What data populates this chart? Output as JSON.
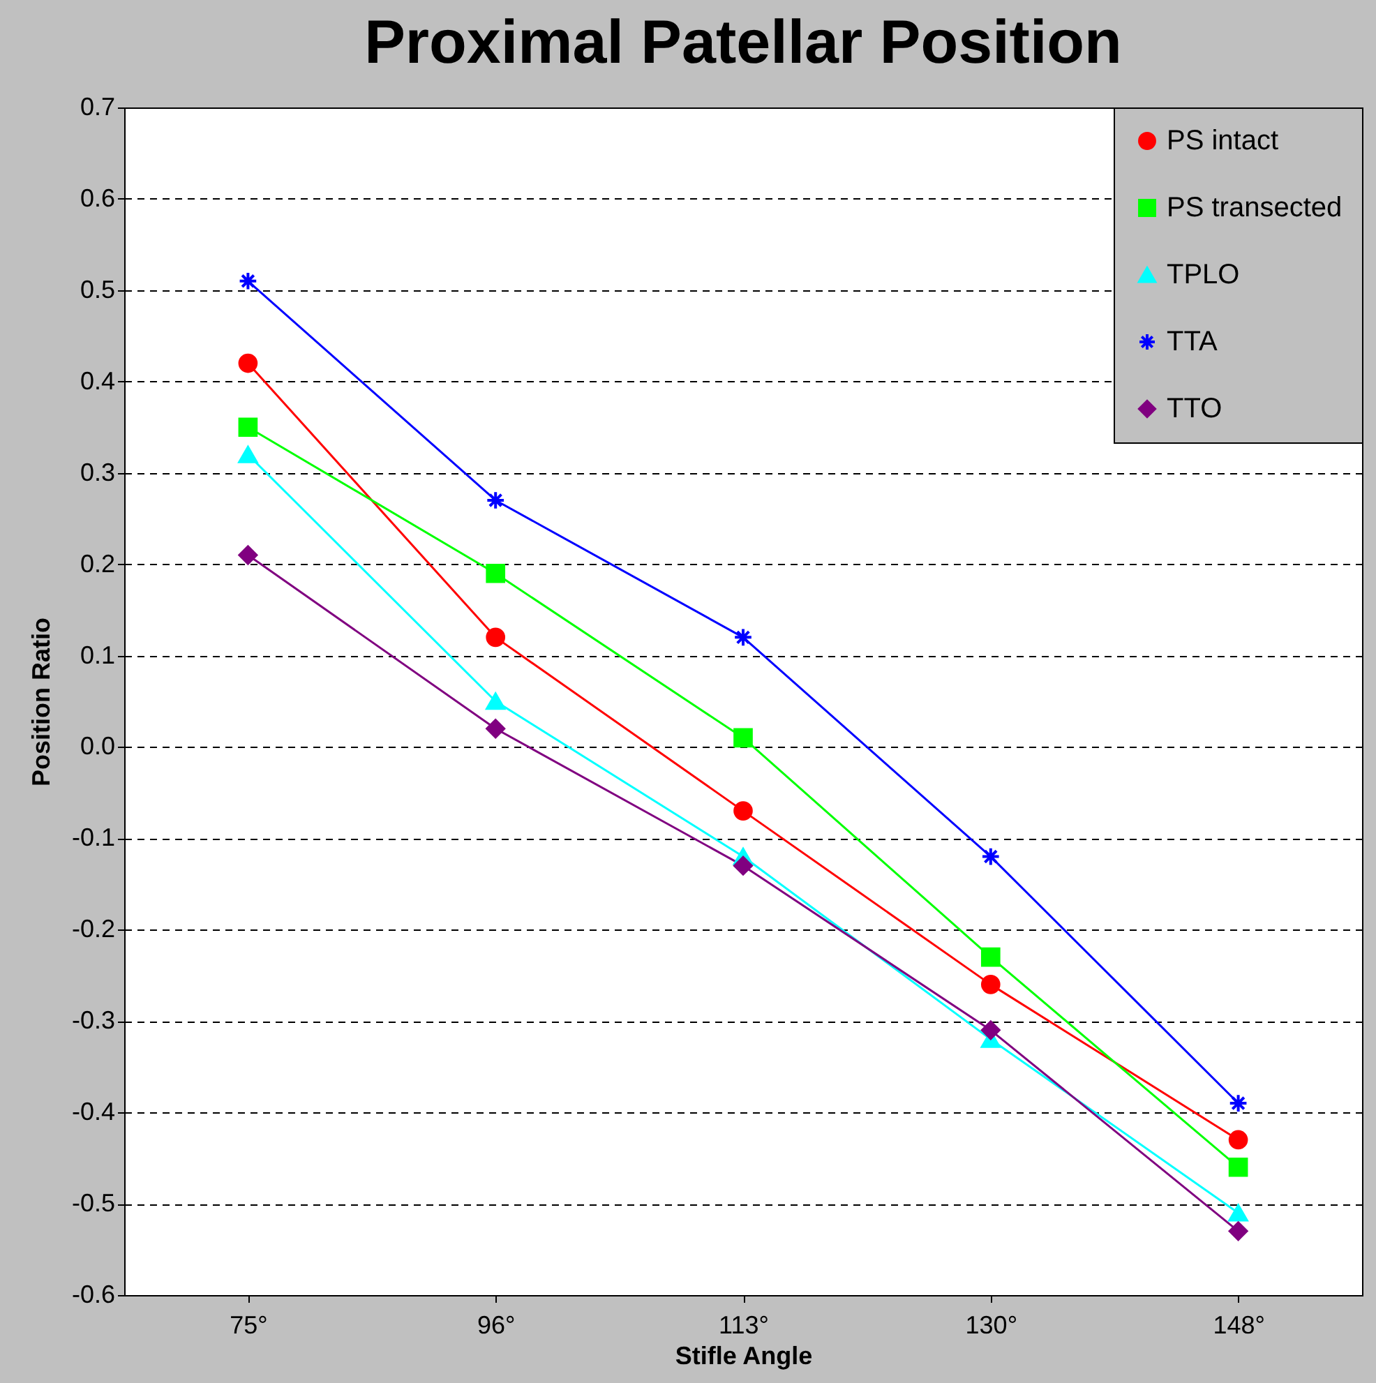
{
  "chart_data": {
    "type": "line",
    "title": "Proximal Patellar Position",
    "xlabel": "Stifle Angle",
    "ylabel": "Position Ratio",
    "categories": [
      "75°",
      "96°",
      "113°",
      "130°",
      "148°"
    ],
    "series": [
      {
        "name": "PS intact",
        "color": "#ff0000",
        "marker": "circle",
        "values": [
          0.42,
          0.12,
          -0.07,
          -0.26,
          -0.43
        ]
      },
      {
        "name": "PS transected",
        "color": "#00ff00",
        "marker": "square",
        "values": [
          0.35,
          0.19,
          0.01,
          -0.23,
          -0.46
        ]
      },
      {
        "name": "TPLO",
        "color": "#00ffff",
        "marker": "triangle",
        "values": [
          0.32,
          0.05,
          -0.12,
          -0.32,
          -0.51
        ]
      },
      {
        "name": "TTA",
        "color": "#0000ff",
        "marker": "cross",
        "values": [
          0.51,
          0.27,
          0.12,
          -0.12,
          -0.39
        ]
      },
      {
        "name": "TTO",
        "color": "#800080",
        "marker": "diamond",
        "values": [
          0.21,
          0.02,
          -0.13,
          -0.31,
          -0.53
        ]
      }
    ],
    "ylim": [
      -0.6,
      0.7
    ],
    "yticks": [
      -0.6,
      -0.5,
      -0.4,
      -0.3,
      -0.2,
      -0.1,
      {
        "value": 0,
        "label": "0.0"
      },
      0.1,
      0.2,
      0.3,
      0.4,
      0.5,
      0.6,
      0.7
    ],
    "grid": "y",
    "legend": "top right",
    "line_style": "solid"
  }
}
